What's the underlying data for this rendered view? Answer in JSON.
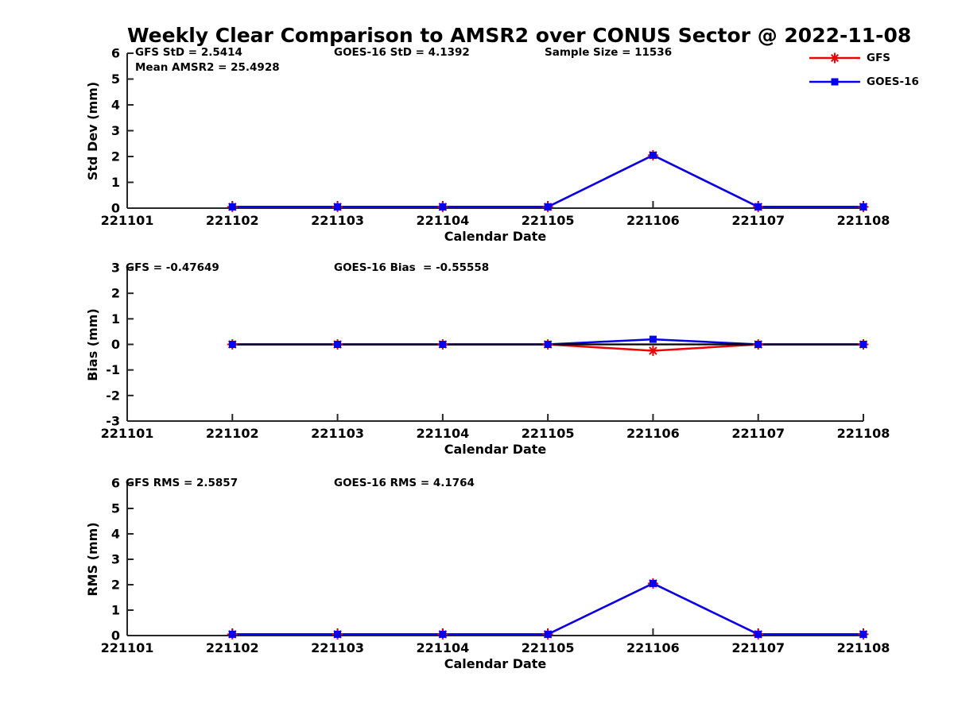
{
  "title": "Weekly Clear Comparison to AMSR2 over CONUS Sector @ 2022-11-08",
  "colors": {
    "gfs": "#ee0000",
    "goes16": "#0000ee",
    "axis": "#262626",
    "zero_line": "#000000",
    "text": "#000000",
    "background": "#ffffff"
  },
  "legend": {
    "entries": [
      {
        "label": "GFS",
        "marker": "asterisk-icon"
      },
      {
        "label": "GOES-16",
        "marker": "square-icon"
      }
    ]
  },
  "chart_data": [
    {
      "type": "line",
      "panel": "std-dev",
      "annotations": [
        "GFS StD = 2.5414",
        "Mean AMSR2 = 25.4928",
        "GOES-16 StD = 4.1392",
        "Sample Size = 11536"
      ],
      "ylabel": "Std Dev (mm)",
      "xlabel": "Calendar Date",
      "ylim": [
        0,
        6
      ],
      "yticks": [
        0,
        1,
        2,
        3,
        4,
        5,
        6
      ],
      "xticklabels": [
        "221101",
        "221102",
        "221103",
        "221104",
        "221105",
        "221106",
        "221107",
        "221108"
      ],
      "x": [
        "221102",
        "221103",
        "221104",
        "221105",
        "221106",
        "221107",
        "221108"
      ],
      "grid": false,
      "legend_position": "upper-right-outside",
      "series": [
        {
          "name": "GFS",
          "color": "#ee0000",
          "marker": "asterisk",
          "values": [
            0.05,
            0.05,
            0.05,
            0.05,
            2.05,
            0.05,
            0.05
          ]
        },
        {
          "name": "GOES-16",
          "color": "#0000ee",
          "marker": "square",
          "values": [
            0.05,
            0.05,
            0.05,
            0.05,
            2.05,
            0.05,
            0.05
          ]
        }
      ]
    },
    {
      "type": "line",
      "panel": "bias",
      "annotations": [
        "GFS = -0.47649",
        "GOES-16 Bias  = -0.55558"
      ],
      "ylabel": "Bias (mm)",
      "xlabel": "Calendar Date",
      "ylim": [
        -3,
        3
      ],
      "yticks": [
        -3,
        -2,
        -1,
        0,
        1,
        2,
        3
      ],
      "xticklabels": [
        "221101",
        "221102",
        "221103",
        "221104",
        "221105",
        "221106",
        "221107",
        "221108"
      ],
      "x": [
        "221102",
        "221103",
        "221104",
        "221105",
        "221106",
        "221107",
        "221108"
      ],
      "grid": false,
      "zero_line": true,
      "series": [
        {
          "name": "GFS",
          "color": "#ee0000",
          "marker": "asterisk",
          "values": [
            0,
            0,
            0,
            0,
            -0.25,
            0,
            0
          ]
        },
        {
          "name": "GOES-16",
          "color": "#0000ee",
          "marker": "square",
          "values": [
            0,
            0,
            0,
            0,
            0.2,
            0,
            0
          ]
        }
      ]
    },
    {
      "type": "line",
      "panel": "rms",
      "annotations": [
        "GFS RMS = 2.5857",
        "GOES-16 RMS = 4.1764"
      ],
      "ylabel": "RMS (mm)",
      "xlabel": "Calendar Date",
      "ylim": [
        0,
        6
      ],
      "yticks": [
        0,
        1,
        2,
        3,
        4,
        5,
        6
      ],
      "xticklabels": [
        "221101",
        "221102",
        "221103",
        "221104",
        "221105",
        "221106",
        "221107",
        "221108"
      ],
      "x": [
        "221102",
        "221103",
        "221104",
        "221105",
        "221106",
        "221107",
        "221108"
      ],
      "grid": false,
      "series": [
        {
          "name": "GFS",
          "color": "#ee0000",
          "marker": "asterisk",
          "values": [
            0.05,
            0.05,
            0.05,
            0.05,
            2.05,
            0.05,
            0.05
          ]
        },
        {
          "name": "GOES-16",
          "color": "#0000ee",
          "marker": "square",
          "values": [
            0.05,
            0.05,
            0.05,
            0.05,
            2.05,
            0.05,
            0.05
          ]
        }
      ]
    }
  ]
}
